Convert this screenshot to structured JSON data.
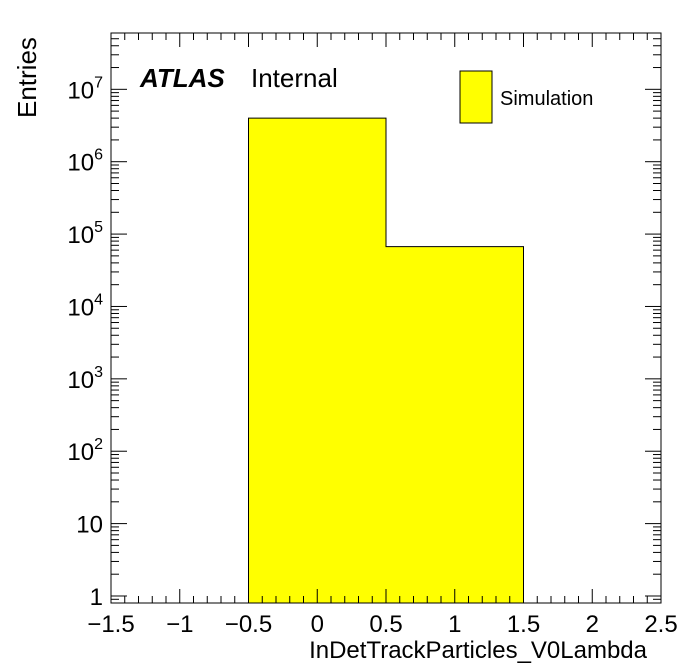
{
  "chart_data": {
    "type": "bar",
    "title": "",
    "xlabel": "InDetTrackParticles_V0Lambda",
    "ylabel": "Entries",
    "x_range": [
      -1.5,
      2.5
    ],
    "y_scale": "log",
    "y_range": [
      0.8,
      60000000
    ],
    "bins": [
      {
        "x_low": -0.5,
        "x_high": 0.5,
        "value": 4000000
      },
      {
        "x_low": 0.5,
        "x_high": 1.5,
        "value": 67000
      }
    ],
    "fill_color": "#ffff00",
    "series": [
      {
        "name": "Simulation",
        "color": "#ffff00"
      }
    ],
    "legend_position": "top-right",
    "x_ticks": [
      {
        "v": -1.5,
        "label": "−1.5"
      },
      {
        "v": -1,
        "label": "−1"
      },
      {
        "v": -0.5,
        "label": "−0.5"
      },
      {
        "v": 0,
        "label": "0"
      },
      {
        "v": 0.5,
        "label": "0.5"
      },
      {
        "v": 1,
        "label": "1"
      },
      {
        "v": 1.5,
        "label": "1.5"
      },
      {
        "v": 2,
        "label": "2"
      },
      {
        "v": 2.5,
        "label": "2.5"
      }
    ],
    "y_ticks": [
      {
        "v": 1,
        "base": "1",
        "exp": ""
      },
      {
        "v": 10,
        "base": "10",
        "exp": ""
      },
      {
        "v": 100,
        "base": "10",
        "exp": "2"
      },
      {
        "v": 1000,
        "base": "10",
        "exp": "3"
      },
      {
        "v": 10000,
        "base": "10",
        "exp": "4"
      },
      {
        "v": 100000,
        "base": "10",
        "exp": "5"
      },
      {
        "v": 1000000,
        "base": "10",
        "exp": "6"
      },
      {
        "v": 10000000,
        "base": "10",
        "exp": "7"
      }
    ],
    "annotation": {
      "experiment": "ATLAS",
      "status": "Internal"
    }
  }
}
